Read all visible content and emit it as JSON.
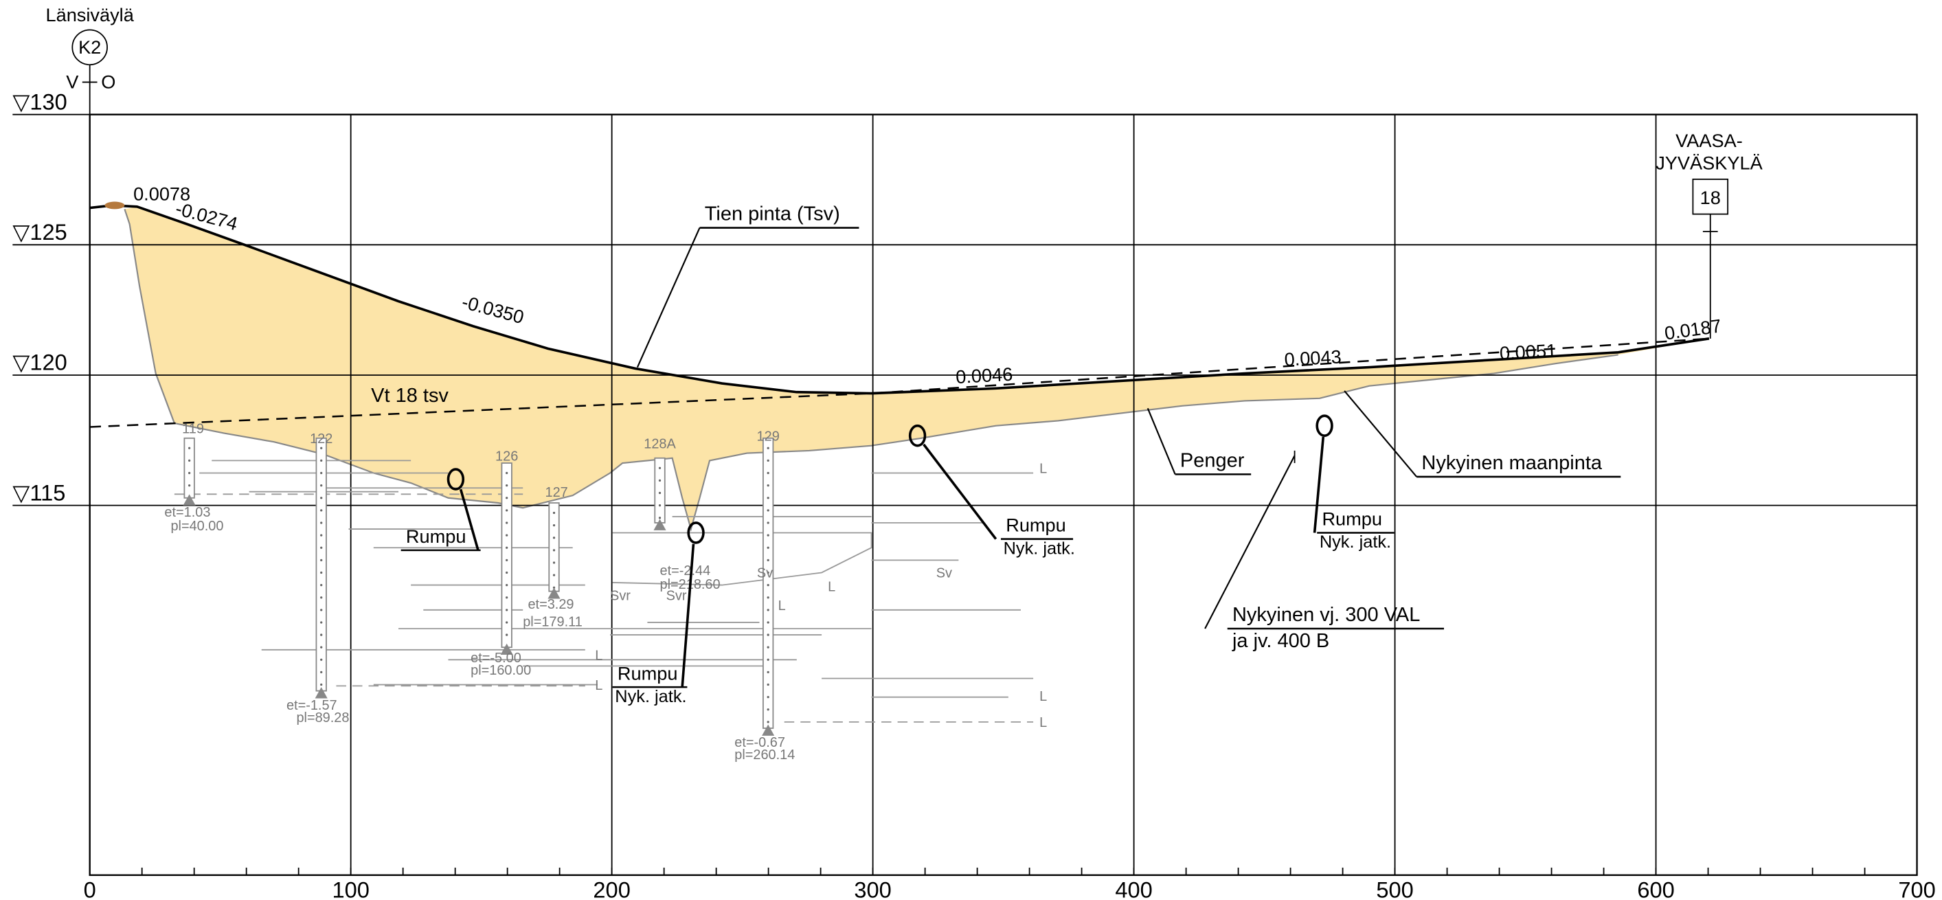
{
  "header": {
    "left_road": "Länsiväylä",
    "left_badge": "K2",
    "left_v": "V",
    "left_o": "O",
    "right_road": [
      "VAASA-",
      "JYVÄSKYLÄ"
    ],
    "right_badge": "18"
  },
  "axis": {
    "x_ticks": [
      0,
      100,
      200,
      300,
      400,
      500,
      600,
      700
    ],
    "elevations": [
      {
        "value": 130,
        "label": "▽130"
      },
      {
        "value": 125,
        "label": "▽125"
      },
      {
        "value": 120,
        "label": "▽120"
      },
      {
        "value": 115,
        "label": "▽115"
      }
    ]
  },
  "slopes": [
    "0.0078",
    "-0.0274",
    "-0.0350",
    "0.0046",
    "0.0043",
    "0.0051",
    "0.0187"
  ],
  "labels": {
    "road_surface": "Tien pinta (Tsv)",
    "vt18": "Vt 18 tsv",
    "embankment": "Penger",
    "ground": "Nykyinen maanpinta",
    "crossing": [
      "Nykyinen vj. 300 VAL",
      "ja jv. 400 B"
    ]
  },
  "culverts": [
    {
      "name": "Rumpu"
    },
    {
      "name": "Rumpu",
      "note": "Nyk. jatk."
    },
    {
      "name": "Rumpu",
      "note": "Nyk. jatk."
    },
    {
      "name": "Rumpu",
      "note": "Nyk. jatk."
    }
  ],
  "boreholes": [
    {
      "id": "119",
      "et": "et=1.03",
      "pl": "pl=40.00"
    },
    {
      "id": "122",
      "et": "et=-1.57",
      "pl": "pl=89.28"
    },
    {
      "id": "126",
      "et": "et=-5.00",
      "pl": "pl=160.00"
    },
    {
      "id": "127",
      "et": "et=3.29",
      "pl": "pl=179.11"
    },
    {
      "id": "128A",
      "et": "et=-2.44",
      "pl": "pl=218.60"
    },
    {
      "id": "129",
      "et": "et=-0.67",
      "pl": "pl=260.14"
    }
  ],
  "soil_labels": [
    "Sv",
    "Svr",
    "Svr",
    "Sv",
    "L",
    "L",
    "L",
    "L",
    "L",
    "L",
    "L"
  ]
}
